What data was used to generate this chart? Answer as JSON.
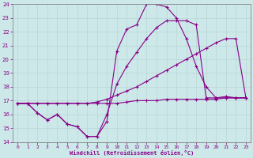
{
  "background_color": "#cce8e8",
  "line_color": "#880088",
  "xlabel": "Windchill (Refroidissement éolien,°C)",
  "xlim_min": -0.5,
  "xlim_max": 23.5,
  "ylim_min": 14,
  "ylim_max": 24,
  "xticks": [
    0,
    1,
    2,
    3,
    4,
    5,
    6,
    7,
    8,
    9,
    10,
    11,
    12,
    13,
    14,
    15,
    16,
    17,
    18,
    19,
    20,
    21,
    22,
    23
  ],
  "yticks": [
    14,
    15,
    16,
    17,
    18,
    19,
    20,
    21,
    22,
    23,
    24
  ],
  "series": [
    {
      "x": [
        0,
        1,
        2,
        3,
        4,
        5,
        6,
        7,
        8,
        9,
        10,
        11,
        12,
        13,
        14,
        15,
        16,
        17,
        18,
        19,
        20,
        21,
        22,
        23
      ],
      "y": [
        16.8,
        16.8,
        16.1,
        15.6,
        16.0,
        15.3,
        15.1,
        14.4,
        14.4,
        15.5,
        20.6,
        22.2,
        22.5,
        24.0,
        24.0,
        23.8,
        23.0,
        21.5,
        19.5,
        18.0,
        17.2,
        17.3,
        17.2,
        17.2
      ]
    },
    {
      "x": [
        0,
        1,
        2,
        3,
        4,
        5,
        6,
        7,
        8,
        9,
        10,
        11,
        12,
        13,
        14,
        15,
        16,
        17,
        18,
        19,
        20,
        21,
        22,
        23
      ],
      "y": [
        16.8,
        16.8,
        16.8,
        16.8,
        16.8,
        16.8,
        16.8,
        16.8,
        16.9,
        17.1,
        17.4,
        17.7,
        18.0,
        18.4,
        18.8,
        19.2,
        19.6,
        20.0,
        20.4,
        20.8,
        21.2,
        21.5,
        21.5,
        17.2
      ]
    },
    {
      "x": [
        0,
        1,
        2,
        3,
        4,
        5,
        6,
        7,
        8,
        9,
        10,
        11,
        12,
        13,
        14,
        15,
        16,
        17,
        18,
        19,
        20,
        21,
        22,
        23
      ],
      "y": [
        16.8,
        16.8,
        16.8,
        16.8,
        16.8,
        16.8,
        16.8,
        16.8,
        16.8,
        16.8,
        16.8,
        16.9,
        17.0,
        17.0,
        17.0,
        17.1,
        17.1,
        17.1,
        17.1,
        17.1,
        17.1,
        17.2,
        17.2,
        17.2
      ]
    },
    {
      "x": [
        0,
        1,
        2,
        3,
        4,
        5,
        6,
        7,
        8,
        9,
        10,
        11,
        12,
        13,
        14,
        15,
        16,
        17,
        18,
        19,
        20,
        21,
        22,
        23
      ],
      "y": [
        16.8,
        16.8,
        16.1,
        15.6,
        16.0,
        15.3,
        15.1,
        14.4,
        14.4,
        16.0,
        18.2,
        19.5,
        20.5,
        21.5,
        22.3,
        22.8,
        22.8,
        22.8,
        22.5,
        17.2,
        17.2,
        17.2,
        17.2,
        17.2
      ]
    }
  ]
}
